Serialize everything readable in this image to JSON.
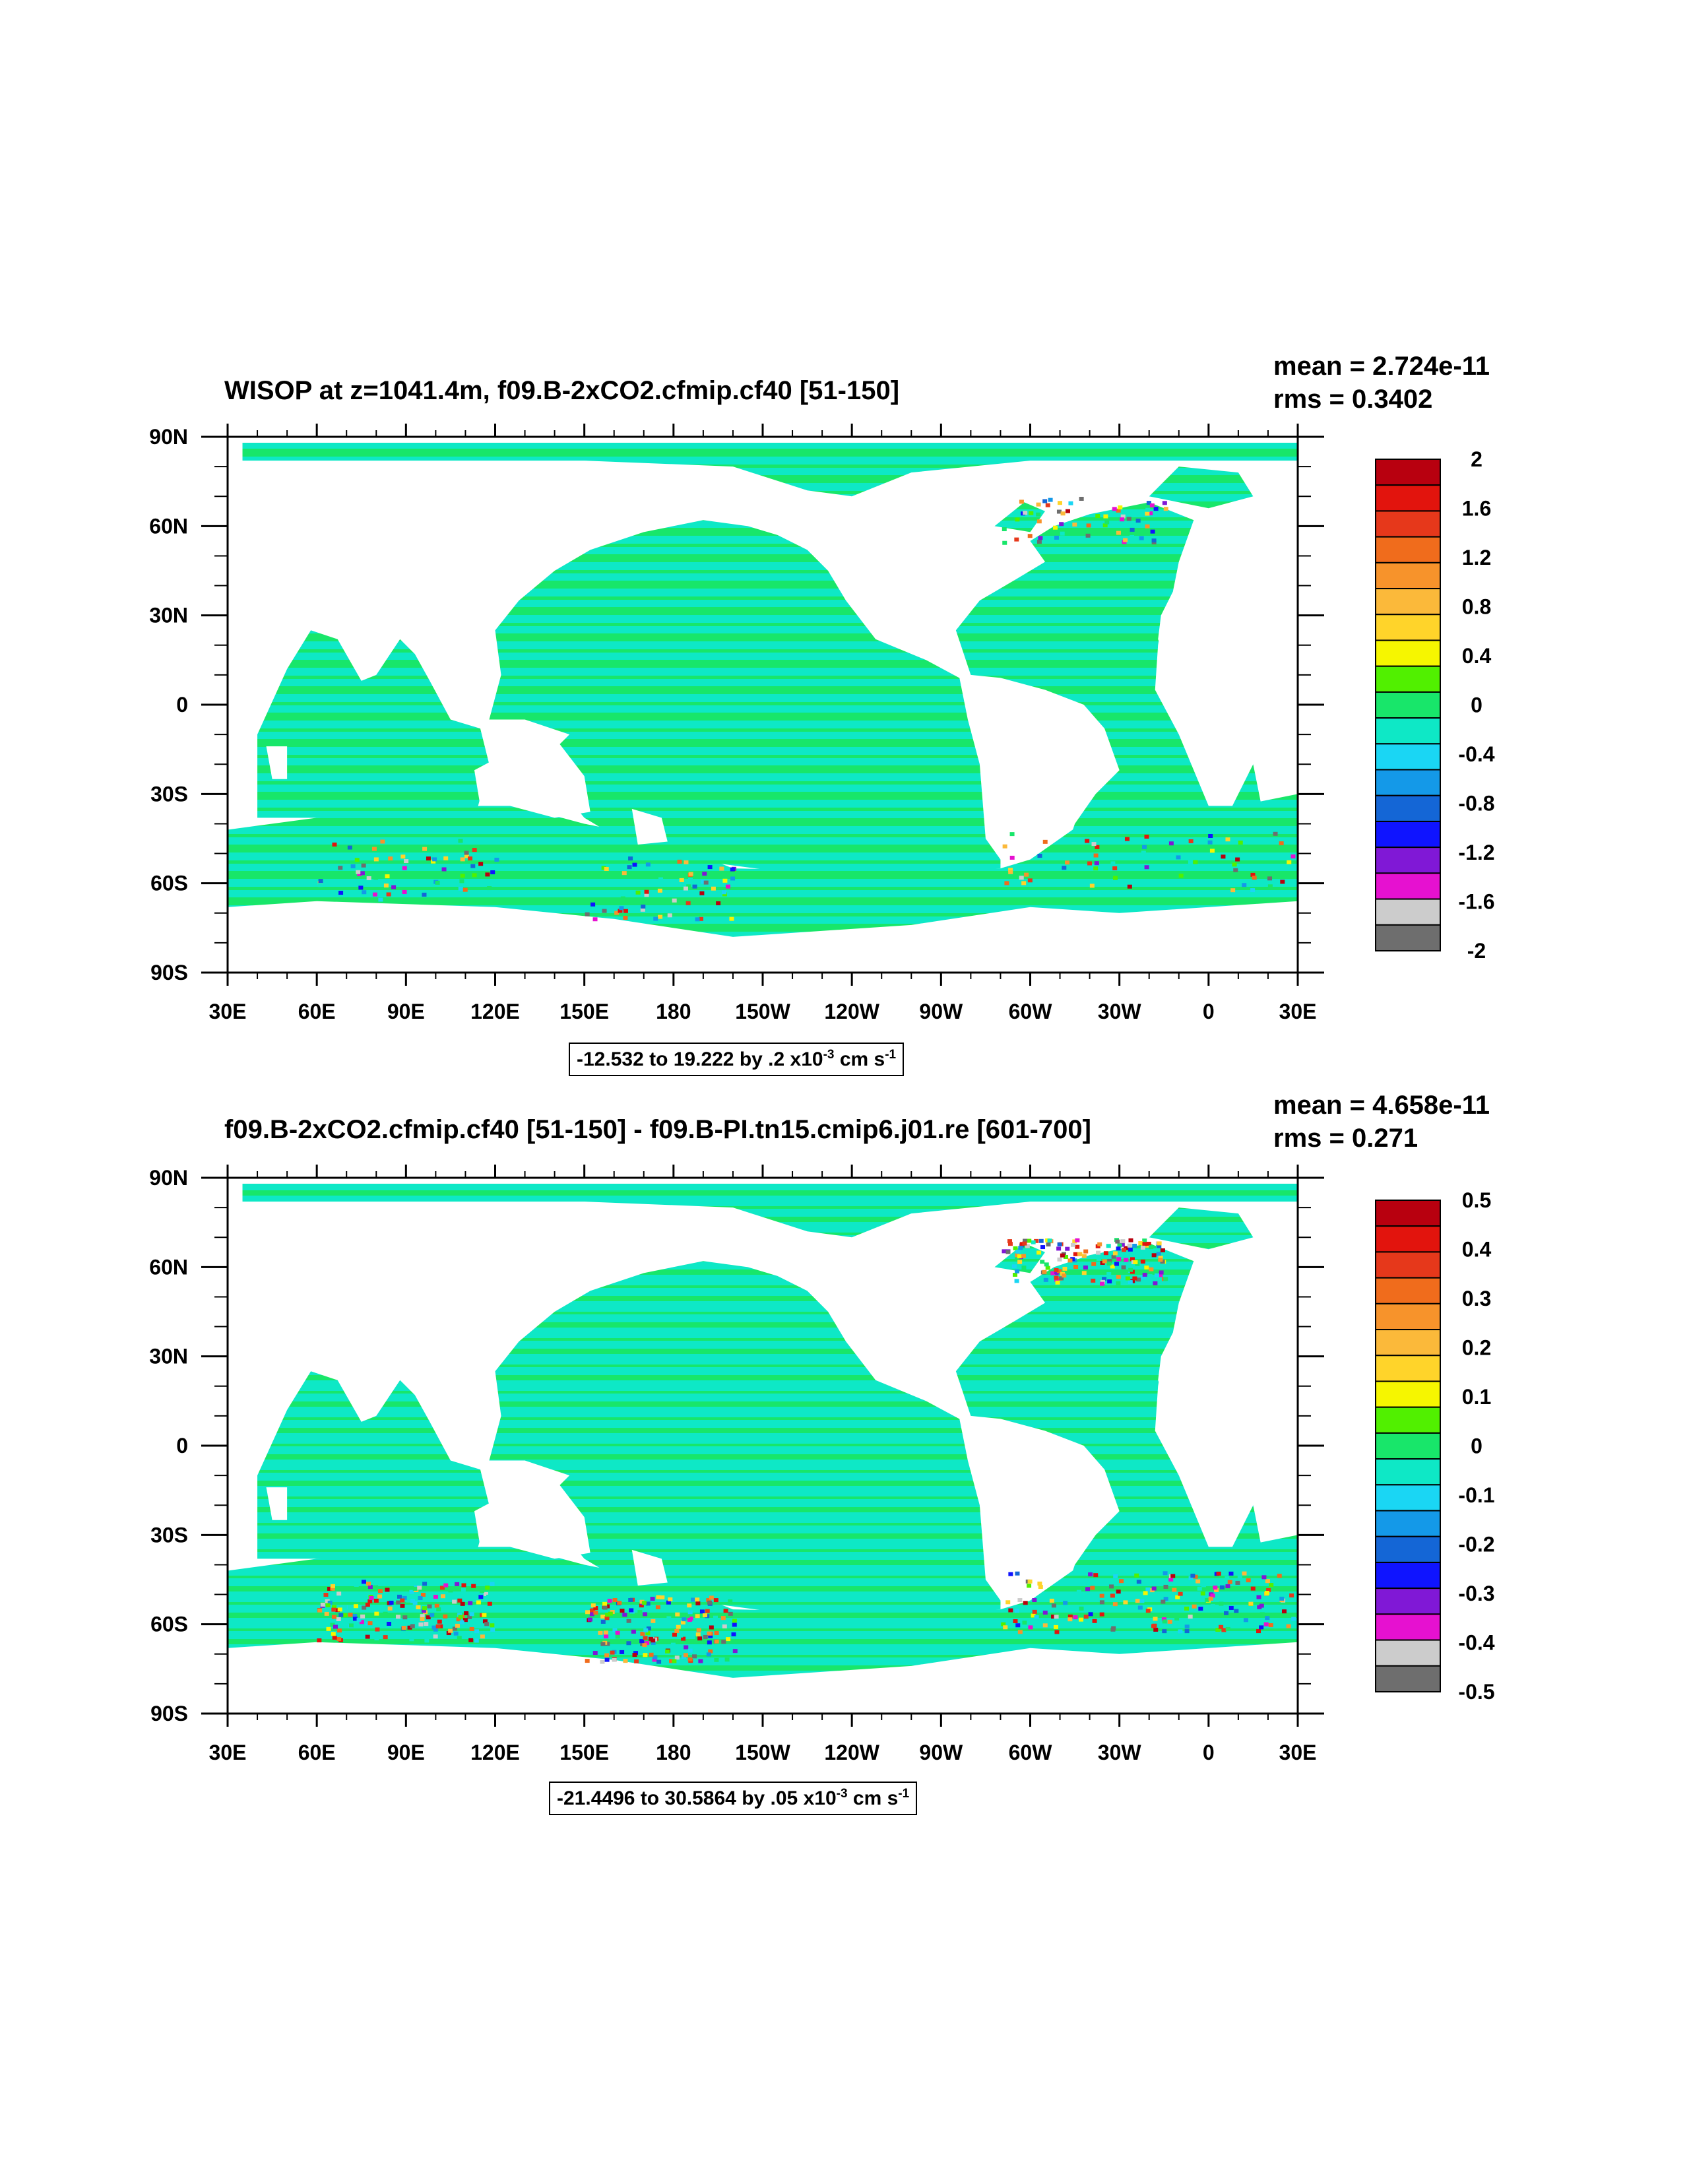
{
  "chart_data": [
    {
      "type": "heatmap",
      "title": "WISOP at z=1041.4m, f09.B-2xCO2.cfmip.cf40 [51-150]",
      "stats": {
        "mean": "mean = 2.724e-11",
        "rms": "rms = 0.3402"
      },
      "range_label": {
        "text": "-12.532 to 19.222 by .2 x10",
        "exp": "-3",
        "unit": " cm s",
        "unit_exp": "-1"
      },
      "x_ticks": [
        "30E",
        "60E",
        "90E",
        "120E",
        "150E",
        "180",
        "150W",
        "120W",
        "90W",
        "60W",
        "30W",
        "0",
        "30E"
      ],
      "y_ticks": [
        "90N",
        "60N",
        "30N",
        "0",
        "30S",
        "60S",
        "90S"
      ],
      "xlim": [
        30,
        390
      ],
      "ylim": [
        -90,
        90
      ],
      "colorbar": {
        "labels": [
          "2",
          "1.6",
          "1.2",
          "0.8",
          "0.4",
          "0",
          "-0.4",
          "-0.8",
          "-1.2",
          "-1.6",
          "-2"
        ],
        "colors": [
          "#b8000f",
          "#e2140d",
          "#e6381b",
          "#f06c1c",
          "#f7932b",
          "#fbb93a",
          "#ffd42a",
          "#f6f600",
          "#51f000",
          "#18e66a",
          "#0ee8c6",
          "#1ad6f4",
          "#1499e8",
          "#1466d6",
          "#0f14ff",
          "#8018d6",
          "#e611d0",
          "#cccccc",
          "#6e6e6e"
        ]
      },
      "dominant_colors": {
        "land": "#ffffff",
        "ocean_cyan": "#0ee8c6",
        "ocean_green": "#18e66a"
      }
    },
    {
      "type": "heatmap",
      "title": "f09.B-2xCO2.cfmip.cf40 [51-150] - f09.B-PI.tn15.cmip6.j01.re [601-700]",
      "stats": {
        "mean": "mean = 4.658e-11",
        "rms": "rms = 0.271"
      },
      "range_label": {
        "text": "-21.4496 to 30.5864 by .05 x10",
        "exp": "-3",
        "unit": " cm s",
        "unit_exp": "-1"
      },
      "x_ticks": [
        "30E",
        "60E",
        "90E",
        "120E",
        "150E",
        "180",
        "150W",
        "120W",
        "90W",
        "60W",
        "30W",
        "0",
        "30E"
      ],
      "y_ticks": [
        "90N",
        "60N",
        "30N",
        "0",
        "30S",
        "60S",
        "90S"
      ],
      "xlim": [
        30,
        390
      ],
      "ylim": [
        -90,
        90
      ],
      "colorbar": {
        "labels": [
          "0.5",
          "0.4",
          "0.3",
          "0.2",
          "0.1",
          "0",
          "-0.1",
          "-0.2",
          "-0.3",
          "-0.4",
          "-0.5"
        ],
        "colors": [
          "#b8000f",
          "#e2140d",
          "#e6381b",
          "#f06c1c",
          "#f7932b",
          "#fbb93a",
          "#ffd42a",
          "#f6f600",
          "#51f000",
          "#18e66a",
          "#0ee8c6",
          "#1ad6f4",
          "#1499e8",
          "#1466d6",
          "#0f14ff",
          "#8018d6",
          "#e611d0",
          "#cccccc",
          "#6e6e6e"
        ]
      },
      "dominant_colors": {
        "land": "#ffffff",
        "ocean_cyan": "#0ee8c6",
        "ocean_green": "#18e66a"
      }
    }
  ]
}
